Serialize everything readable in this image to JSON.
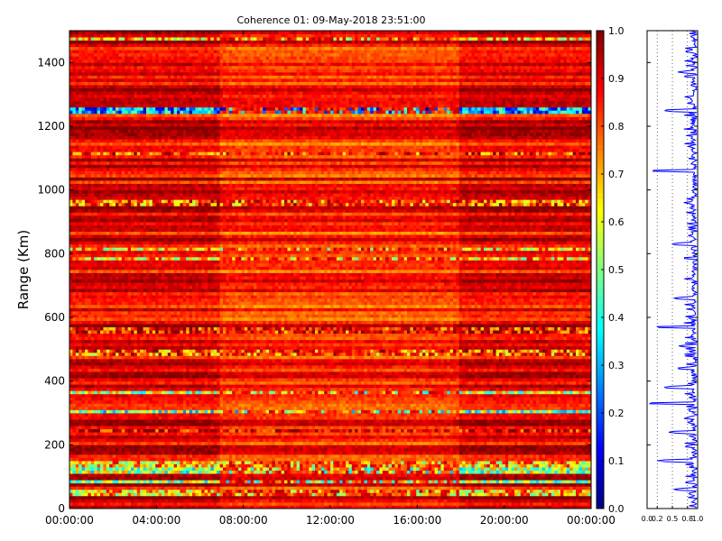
{
  "chart_data": [
    {
      "type": "heatmap",
      "title": "Coherence 01: 09-May-2018 23:51:00",
      "ylabel": "Range (Km)",
      "xlabel": "",
      "x_tick_labels": [
        "00:00:00",
        "04:00:00",
        "08:00:00",
        "12:00:00",
        "16:00:00",
        "20:00:00",
        "00:00:00"
      ],
      "y_ticks": [
        0,
        200,
        400,
        600,
        800,
        1000,
        1200,
        1400
      ],
      "ylim": [
        0,
        1500
      ],
      "colorbar": {
        "colormap": "jet",
        "range": [
          0,
          1
        ],
        "ticks": [
          "0.0",
          "0.1",
          "0.2",
          "0.3",
          "0.4",
          "0.5",
          "0.6",
          "0.7",
          "0.8",
          "0.9",
          "1.0"
        ]
      },
      "segments": [
        {
          "from_hour": 0.0,
          "to_hour": 6.95,
          "mean_level": 0.9
        },
        {
          "from_hour": 6.95,
          "to_hour": 17.95,
          "mean_level": 0.84
        },
        {
          "from_hour": 17.95,
          "to_hour": 24.0,
          "mean_level": 0.9
        }
      ],
      "low_coherence_bands_km": [
        {
          "range": 1472,
          "value": 0.45
        },
        {
          "range": 1250,
          "value": 0.05
        },
        {
          "range": 1115,
          "value": 0.6
        },
        {
          "range": 960,
          "value": 0.55
        },
        {
          "range": 815,
          "value": 0.45
        },
        {
          "range": 785,
          "value": 0.45
        },
        {
          "range": 560,
          "value": 0.65
        },
        {
          "range": 490,
          "value": 0.55
        },
        {
          "range": 365,
          "value": 0.35
        },
        {
          "range": 305,
          "value": 0.25
        },
        {
          "range": 245,
          "value": 0.7
        },
        {
          "range": 140,
          "value": 0.45
        },
        {
          "range": 120,
          "value": 0.3
        },
        {
          "range": 85,
          "value": 0.3
        },
        {
          "range": 50,
          "value": 0.45
        }
      ]
    },
    {
      "type": "line",
      "title": "",
      "xlabel": "",
      "ylabel": "",
      "x_tick_labels": [
        "0.0",
        "0.2",
        "0.5",
        "0.8",
        "1.0"
      ],
      "x_ticks": [
        0.0,
        0.2,
        0.5,
        0.8,
        1.0
      ],
      "xlim": [
        0,
        1
      ],
      "ylim": [
        0,
        1500
      ],
      "series_color": "#0000ff",
      "dips": [
        {
          "range": 1435,
          "value": 0.7
        },
        {
          "range": 1370,
          "value": 0.6
        },
        {
          "range": 1285,
          "value": 0.8
        },
        {
          "range": 1250,
          "value": 0.3
        },
        {
          "range": 1060,
          "value": 0.05
        },
        {
          "range": 960,
          "value": 0.7
        },
        {
          "range": 830,
          "value": 0.45
        },
        {
          "range": 660,
          "value": 0.5
        },
        {
          "range": 570,
          "value": 0.15
        },
        {
          "range": 510,
          "value": 0.6
        },
        {
          "range": 440,
          "value": 0.55
        },
        {
          "range": 380,
          "value": 0.3
        },
        {
          "range": 330,
          "value": 0.0
        },
        {
          "range": 270,
          "value": 0.75
        },
        {
          "range": 240,
          "value": 0.4
        },
        {
          "range": 150,
          "value": 0.2
        },
        {
          "range": 60,
          "value": 0.5
        }
      ]
    }
  ]
}
